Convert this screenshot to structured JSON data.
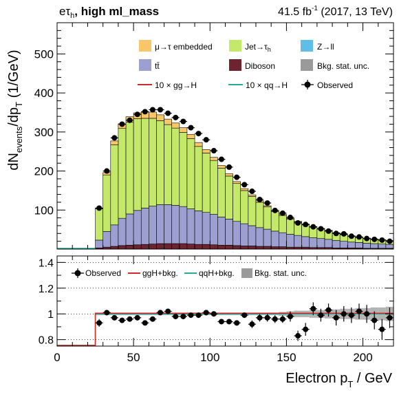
{
  "header": {
    "channel_main": "eτ",
    "channel_sub": "h",
    "category": ", high ml_mass",
    "lumi_main": "41.5 fb",
    "lumi_sup": "-1",
    "lumi_rest": " (2017, 13 TeV)"
  },
  "colors": {
    "embedded": "#f9c66a",
    "jet_tau": "#c4e86a",
    "z_ll": "#5fbde6",
    "ttbar": "#9d9fd0",
    "diboson": "#6e2330",
    "stat_unc": "#9a9a9a",
    "ggh_line": "#cc2b2b",
    "qqh_line": "#2aa89a"
  },
  "chart_data": [
    {
      "type": "area",
      "stacked": true,
      "xlabel_main": "Electron p",
      "xlabel_sub": "T",
      "xlabel_unit": " / GeV",
      "ylabel_main": "dN",
      "ylabel_sub": "events",
      "ylabel_mid": "/dp",
      "ylabel_sub2": "T",
      "ylabel_unit": "  (1/GeV)",
      "xlim": [
        0,
        220
      ],
      "ylim": [
        0,
        580
      ],
      "yticks": [
        100,
        200,
        300,
        400,
        500
      ],
      "legend": {
        "embedded": "μ→τ embedded",
        "jet_main": "Jet→τ",
        "jet_sub": "h",
        "z_ll": "Z→ll",
        "ttbar": "tt̄",
        "diboson": "Diboson",
        "stat_unc": "Bkg. stat. unc.",
        "ggh": "10 × gg→H",
        "qqh": "10 × qq→H",
        "observed": "Observed"
      },
      "bin_edges": [
        25,
        30,
        35,
        40,
        45,
        50,
        55,
        60,
        65,
        70,
        75,
        80,
        85,
        90,
        95,
        100,
        105,
        110,
        115,
        120,
        125,
        130,
        135,
        140,
        145,
        150,
        155,
        160,
        165,
        170,
        175,
        180,
        185,
        190,
        195,
        200,
        205,
        210,
        215,
        220
      ],
      "x": [
        27.5,
        32.5,
        37.5,
        42.5,
        47.5,
        52.5,
        57.5,
        62.5,
        67.5,
        72.5,
        77.5,
        82.5,
        87.5,
        92.5,
        97.5,
        102.5,
        107.5,
        112.5,
        117.5,
        122.5,
        127.5,
        132.5,
        137.5,
        142.5,
        147.5,
        152.5,
        157.5,
        162.5,
        167.5,
        172.5,
        177.5,
        182.5,
        187.5,
        192.5,
        197.5,
        202.5,
        207.5,
        212.5,
        217.5
      ],
      "series": [
        {
          "name": "Diboson",
          "values": [
            3,
            5,
            7,
            9,
            10,
            11,
            12,
            13,
            14,
            14,
            14,
            14,
            13,
            12,
            12,
            11,
            10,
            10,
            9,
            8,
            8,
            7,
            7,
            6,
            6,
            5,
            5,
            5,
            4,
            4,
            4,
            3,
            3,
            3,
            3,
            2,
            2,
            2,
            2
          ]
        },
        {
          "name": "tt̄",
          "values": [
            20,
            40,
            55,
            70,
            80,
            88,
            93,
            97,
            100,
            100,
            98,
            95,
            90,
            86,
            82,
            78,
            72,
            67,
            62,
            57,
            52,
            48,
            44,
            40,
            36,
            33,
            30,
            27,
            25,
            23,
            21,
            19,
            17,
            15,
            14,
            13,
            12,
            11,
            10
          ]
        },
        {
          "name": "Jet→τh",
          "values": [
            80,
            145,
            205,
            230,
            235,
            235,
            230,
            225,
            215,
            205,
            198,
            190,
            180,
            165,
            152,
            138,
            125,
            110,
            97,
            85,
            75,
            65,
            57,
            50,
            44,
            39,
            34,
            30,
            27,
            24,
            22,
            19,
            17,
            15,
            13,
            12,
            11,
            10,
            9
          ]
        },
        {
          "name": "Z→ll",
          "values": [
            0,
            0,
            0,
            0,
            0,
            0,
            0,
            0,
            0,
            0,
            0,
            0,
            0,
            0,
            0,
            0,
            0,
            0,
            0,
            0,
            0,
            0,
            0,
            0,
            0,
            0,
            0,
            0,
            0,
            0,
            0,
            0,
            0,
            0,
            0,
            0,
            0,
            0,
            0
          ]
        },
        {
          "name": "μ→τ embedded",
          "values": [
            2,
            6,
            10,
            12,
            14,
            15,
            16,
            16,
            15,
            14,
            13,
            12,
            11,
            10,
            9,
            8,
            7,
            6,
            5,
            5,
            4,
            4,
            3,
            3,
            3,
            2,
            2,
            2,
            2,
            2,
            1,
            1,
            1,
            1,
            1,
            1,
            1,
            1,
            1
          ]
        }
      ],
      "observed": [
        105,
        200,
        285,
        320,
        330,
        345,
        352,
        357,
        357,
        348,
        337,
        327,
        311,
        296,
        280,
        252,
        230,
        210,
        184,
        165,
        148,
        127,
        118,
        99,
        92,
        81,
        67,
        63,
        57,
        52,
        46,
        40,
        39,
        33,
        31,
        27,
        25,
        23,
        20
      ],
      "observed_err": [
        3,
        4,
        5,
        5,
        5,
        5,
        5,
        5,
        5,
        5,
        5,
        5,
        5,
        5,
        5,
        4,
        4,
        4,
        4,
        4,
        4,
        4,
        3,
        3,
        3,
        3,
        3,
        3,
        3,
        2,
        2,
        2,
        2,
        2,
        2,
        2,
        2,
        2,
        2
      ]
    },
    {
      "type": "scatter",
      "legend": {
        "observed": "Observed",
        "ggh": "ggH+bkg.",
        "qqh": "qqH+bkg.",
        "stat_unc": "Bkg. stat. unc."
      },
      "xlim": [
        0,
        220
      ],
      "ylim": [
        0.75,
        1.45
      ],
      "yticks": [
        0.8,
        1,
        1.2,
        1.4
      ],
      "xticks": [
        0,
        50,
        100,
        150,
        200
      ],
      "gridlines": [
        0.8,
        1,
        1.2,
        1.4
      ],
      "x": [
        27.5,
        32.5,
        37.5,
        42.5,
        47.5,
        52.5,
        57.5,
        62.5,
        67.5,
        72.5,
        77.5,
        82.5,
        87.5,
        92.5,
        97.5,
        102.5,
        107.5,
        112.5,
        117.5,
        122.5,
        127.5,
        132.5,
        137.5,
        142.5,
        147.5,
        152.5,
        157.5,
        162.5,
        167.5,
        172.5,
        177.5,
        182.5,
        187.5,
        192.5,
        197.5,
        202.5,
        207.5,
        212.5,
        217.5
      ],
      "ratio": [
        0.93,
        1.01,
        0.97,
        0.95,
        0.96,
        0.97,
        0.93,
        0.96,
        1.01,
        1.02,
        0.98,
        0.98,
        0.99,
        0.99,
        1.01,
        1.0,
        0.94,
        0.94,
        0.93,
        0.99,
        0.92,
        0.97,
        0.97,
        0.96,
        0.96,
        0.98,
        0.83,
        0.88,
        1.04,
        0.99,
        1.03,
        0.97,
        1.0,
        0.99,
        1.02,
        1.0,
        0.95,
        0.88,
        0.97
      ],
      "ratio_err": [
        0.03,
        0.02,
        0.02,
        0.02,
        0.02,
        0.02,
        0.02,
        0.02,
        0.02,
        0.02,
        0.02,
        0.02,
        0.02,
        0.02,
        0.02,
        0.02,
        0.02,
        0.02,
        0.02,
        0.02,
        0.03,
        0.03,
        0.03,
        0.03,
        0.03,
        0.04,
        0.04,
        0.05,
        0.05,
        0.05,
        0.05,
        0.06,
        0.06,
        0.06,
        0.06,
        0.07,
        0.07,
        0.08,
        0.08
      ],
      "stat_unc_halfwidth": [
        0.01,
        0.01,
        0.01,
        0.01,
        0.01,
        0.01,
        0.01,
        0.01,
        0.01,
        0.01,
        0.01,
        0.01,
        0.01,
        0.01,
        0.01,
        0.01,
        0.01,
        0.01,
        0.01,
        0.01,
        0.01,
        0.01,
        0.01,
        0.01,
        0.015,
        0.02,
        0.025,
        0.025,
        0.03,
        0.03,
        0.035,
        0.035,
        0.04,
        0.04,
        0.045,
        0.045,
        0.05,
        0.05,
        0.055
      ],
      "ggh_ratio": 1.0,
      "qqh_ratio": 1.0
    }
  ]
}
